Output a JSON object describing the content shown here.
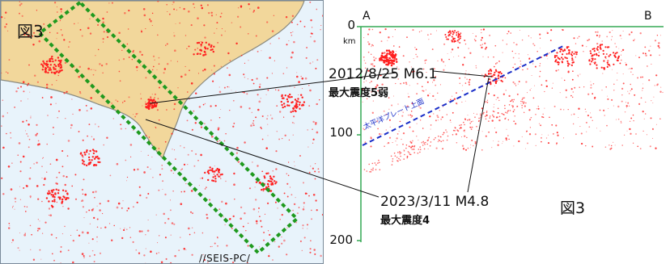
{
  "map": {
    "figure_label": "図3",
    "watermark": "//SEIS-PC/"
  },
  "cross_section": {
    "start_label": "A",
    "end_label": "B",
    "depth_ticks": [
      "0",
      "100",
      "200"
    ],
    "depth_unit": "km",
    "plate_boundary_label": "太平洋プレート上面",
    "figure_label": "図3"
  },
  "annotations": [
    {
      "title": "2012/8/25 M6.1",
      "subtitle": "最大震度5弱"
    },
    {
      "title": "2023/3/11 M4.8",
      "subtitle": "最大震度4"
    }
  ],
  "colors": {
    "land": "#f2d79b",
    "sea": "#e8f3fb",
    "coastline": "#8a8a80",
    "epicenter": "#ff2020",
    "selection_box": "#1f9a1f",
    "plate_boundary": "#1a2ec8",
    "section_axes": "#34a853"
  }
}
